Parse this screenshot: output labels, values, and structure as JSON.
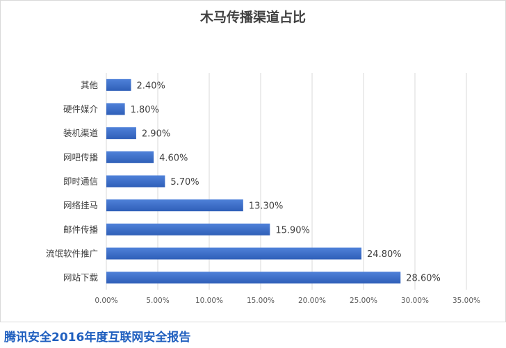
{
  "chart_data": {
    "type": "bar",
    "orientation": "horizontal",
    "title": "木马传播渠道占比",
    "categories": [
      "其他",
      "硬件媒介",
      "装机渠道",
      "网吧传播",
      "即时通信",
      "网络挂马",
      "邮件传播",
      "流氓软件推广",
      "网站下载"
    ],
    "values": [
      2.4,
      1.8,
      2.9,
      4.6,
      5.7,
      13.3,
      15.9,
      24.8,
      28.6
    ],
    "data_labels": [
      "2.40%",
      "1.80%",
      "2.90%",
      "4.60%",
      "5.70%",
      "13.30%",
      "15.90%",
      "24.80%",
      "28.60%"
    ],
    "xlim": [
      0,
      35
    ],
    "x_ticks": [
      0,
      5,
      10,
      15,
      20,
      25,
      30,
      35
    ],
    "x_tick_labels": [
      "0.00%",
      "5.00%",
      "10.00%",
      "15.00%",
      "20.00%",
      "25.00%",
      "30.00%",
      "35.00%"
    ],
    "grid": true,
    "legend": "none",
    "bar_color_top": "#4f81d9",
    "bar_color_bottom": "#2f5fb8",
    "xlabel": "",
    "ylabel": ""
  },
  "footer": {
    "source": "腾讯安全2016年度互联网安全报告"
  }
}
